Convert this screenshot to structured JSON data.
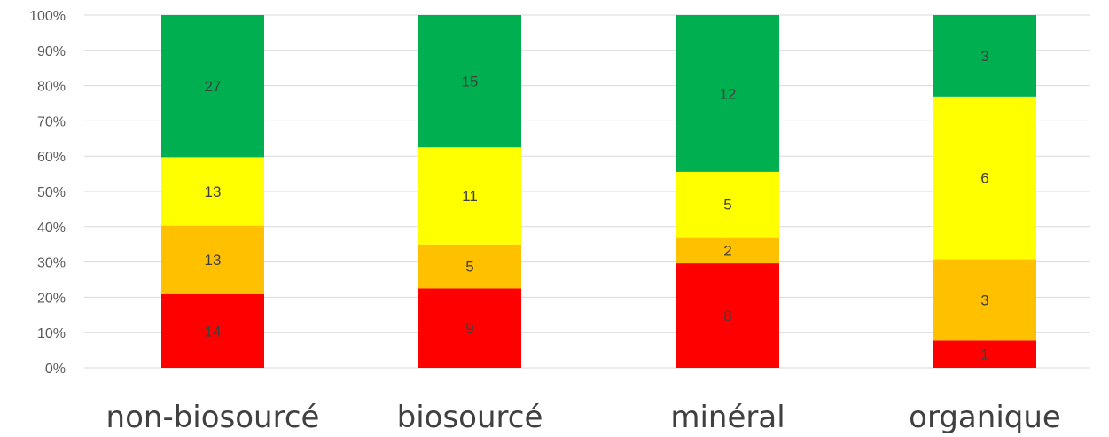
{
  "chart_data": {
    "type": "bar",
    "stacked": "percent",
    "title": "",
    "xlabel": "",
    "ylabel": "",
    "ylim": [
      0,
      100
    ],
    "yticks": [
      "0%",
      "10%",
      "20%",
      "30%",
      "40%",
      "50%",
      "60%",
      "70%",
      "80%",
      "90%",
      "100%"
    ],
    "grid": true,
    "legend": "none",
    "categories": [
      "non-biosourcé",
      "biosourcé",
      "minéral",
      "organique"
    ],
    "series": [
      {
        "color": "#ff0000",
        "values": [
          14,
          9,
          8,
          1
        ]
      },
      {
        "color": "#ffc000",
        "values": [
          13,
          5,
          2,
          3
        ]
      },
      {
        "color": "#ffff00",
        "values": [
          13,
          11,
          5,
          6
        ]
      },
      {
        "color": "#00b050",
        "values": [
          27,
          15,
          12,
          3
        ]
      }
    ]
  }
}
